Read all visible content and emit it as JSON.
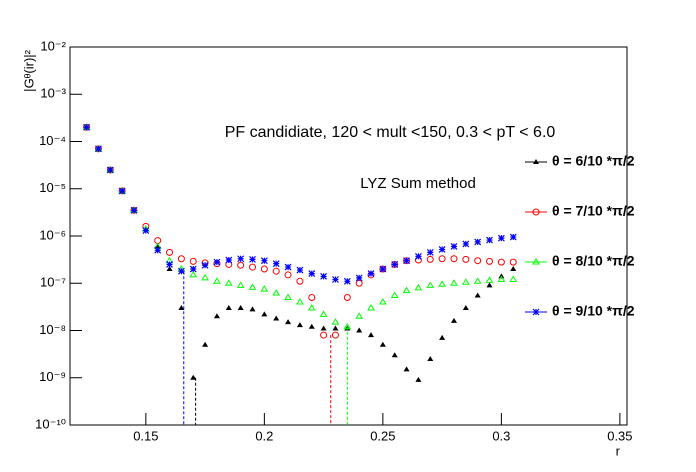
{
  "chart_data": {
    "type": "scatter",
    "annotations": [
      "PF candidiate, 120 < mult <150, 0.3 < pT < 6.0",
      "LYZ Sum method"
    ],
    "x_label": "r",
    "y_label": "|Gᶿ(ir)|²",
    "log_y": true,
    "xlim": [
      0.118,
      0.353
    ],
    "ylim": [
      1e-10,
      0.01
    ],
    "xticks": [
      0.15,
      0.2,
      0.25,
      0.3,
      0.35
    ],
    "yticks": [
      {
        "value": 1e-10,
        "label": "10⁻¹⁰"
      },
      {
        "value": 1e-09,
        "label": "10⁻⁹"
      },
      {
        "value": 1e-08,
        "label": "10⁻⁸"
      },
      {
        "value": 1e-07,
        "label": "10⁻⁷"
      },
      {
        "value": 1e-06,
        "label": "10⁻⁶"
      },
      {
        "value": 1e-05,
        "label": "10⁻⁵"
      },
      {
        "value": 0.0001,
        "label": "10⁻⁴"
      },
      {
        "value": 0.001,
        "label": "10⁻³"
      },
      {
        "value": 0.01,
        "label": "10⁻²"
      }
    ],
    "x": [
      0.125,
      0.13,
      0.135,
      0.14,
      0.145,
      0.15,
      0.155,
      0.16,
      0.165,
      0.17,
      0.175,
      0.18,
      0.185,
      0.19,
      0.195,
      0.2,
      0.205,
      0.21,
      0.215,
      0.22,
      0.225,
      0.23,
      0.235,
      0.24,
      0.245,
      0.25,
      0.255,
      0.26,
      0.265,
      0.27,
      0.275,
      0.28,
      0.285,
      0.29,
      0.295,
      0.3,
      0.305
    ],
    "series": [
      {
        "name": "θ = 6/10 *π/2",
        "color": "#000000",
        "marker": "triangle",
        "drop_x": 0.171,
        "values": [
          0.0002,
          7e-05,
          2.5e-05,
          9e-06,
          3.5e-06,
          1.4e-06,
          6e-07,
          2e-07,
          3e-08,
          1e-09,
          5e-09,
          2e-08,
          3e-08,
          3e-08,
          2.8e-08,
          2.2e-08,
          1.8e-08,
          1.5e-08,
          1.3e-08,
          1.2e-08,
          1.1e-08,
          1.1e-08,
          1.1e-08,
          1e-08,
          8e-09,
          5e-09,
          3e-09,
          1.5e-09,
          9e-10,
          2.5e-09,
          7e-09,
          1.6e-08,
          3e-08,
          5.5e-08,
          9e-08,
          1.4e-07,
          2e-07
        ]
      },
      {
        "name": "θ = 7/10 *π/2",
        "color": "#ff0000",
        "marker": "circle",
        "drop_x": 0.228,
        "values": [
          0.0002,
          7e-05,
          2.5e-05,
          9e-06,
          3.5e-06,
          1.6e-06,
          8e-07,
          4.5e-07,
          3.3e-07,
          2.9e-07,
          2.7e-07,
          2.6e-07,
          2.5e-07,
          2.4e-07,
          2.2e-07,
          2e-07,
          1.8e-07,
          1.5e-07,
          1.1e-07,
          5e-08,
          8e-09,
          8e-09,
          5e-08,
          1e-07,
          1.5e-07,
          2e-07,
          2.5e-07,
          3e-07,
          3.1e-07,
          3.2e-07,
          3.3e-07,
          3.3e-07,
          3.2e-07,
          3e-07,
          2.9e-07,
          2.8e-07,
          2.8e-07
        ]
      },
      {
        "name": "θ = 8/10 *π/2",
        "color": "#00ff00",
        "marker": "open-triangle",
        "drop_x": 0.235,
        "values": [
          0.0002,
          7e-05,
          2.5e-05,
          9e-06,
          3.5e-06,
          1.4e-06,
          6e-07,
          3e-07,
          2e-07,
          1.5e-07,
          1.3e-07,
          1.1e-07,
          1e-07,
          9e-08,
          8.2e-08,
          7.5e-08,
          6.2e-08,
          5e-08,
          4e-08,
          3e-08,
          2.2e-08,
          1.5e-08,
          1.2e-08,
          2e-08,
          3e-08,
          4e-08,
          5.5e-08,
          7e-08,
          8e-08,
          9e-08,
          9.5e-08,
          1e-07,
          1.05e-07,
          1.1e-07,
          1.15e-07,
          1.2e-07,
          1.2e-07
        ]
      },
      {
        "name": "θ = 9/10 *π/2",
        "color": "#0000ff",
        "marker": "star",
        "drop_x": 0.166,
        "values": [
          0.0002,
          7e-05,
          2.5e-05,
          9e-06,
          3.5e-06,
          1.3e-06,
          5e-07,
          2.5e-07,
          1.8e-07,
          2e-07,
          2.4e-07,
          2.8e-07,
          3.1e-07,
          3.3e-07,
          3.2e-07,
          3e-07,
          2.6e-07,
          2.2e-07,
          1.9e-07,
          1.6e-07,
          1.4e-07,
          1.2e-07,
          1.1e-07,
          1.3e-07,
          1.6e-07,
          2e-07,
          2.5e-07,
          3e-07,
          3.7e-07,
          4.5e-07,
          5.2e-07,
          6e-07,
          6.8e-07,
          7.5e-07,
          8.2e-07,
          9e-07,
          9.5e-07
        ]
      }
    ]
  }
}
